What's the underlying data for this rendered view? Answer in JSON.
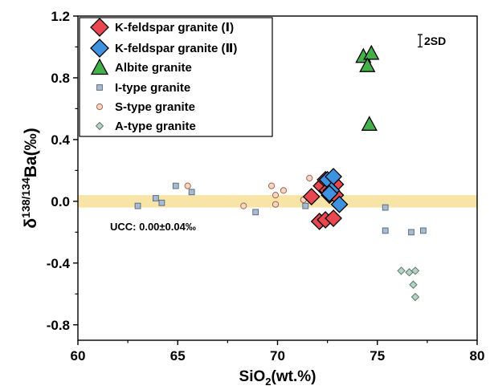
{
  "colors": {
    "kfs1": "#e8474f",
    "kfs2": "#3e92e0",
    "albite": "#43b049",
    "itype": "#a9bccf",
    "stype": "#f1d8c6",
    "atype": "#b7d2c6",
    "ucc_band": "#f7e4a6",
    "itype_stroke": "#5a6e86",
    "stype_stroke": "#a8634a",
    "atype_stroke": "#5c7a68"
  },
  "chart_data": {
    "type": "scatter",
    "title": "",
    "xlabel": "SiO",
    "xlabel_sub": "2",
    "xlabel_suffix": "(wt.%)",
    "ylabel_prefix": "δ",
    "ylabel_sup": "138/134",
    "ylabel_suffix": "Ba(‰)",
    "xlim": [
      60,
      80
    ],
    "ylim": [
      -0.9,
      1.2
    ],
    "xticks": [
      60,
      65,
      70,
      75,
      80
    ],
    "xtick_labels": [
      "60",
      "65",
      "70",
      "75",
      "80"
    ],
    "yticks": [
      -0.8,
      -0.4,
      0.0,
      0.4,
      0.8,
      1.2
    ],
    "ytick_labels": [
      "-0.8",
      "-0.4",
      "0.0",
      "0.4",
      "0.8",
      "1.2"
    ],
    "grid": false,
    "legend_position": "top-left",
    "ucc_band": {
      "y_min": -0.04,
      "y_max": 0.04,
      "label": "UCC: 0.00±0.04‰"
    },
    "error_bar": {
      "label": "2SD",
      "x": 77.0,
      "half_height": 0.04,
      "y": 1.04
    },
    "series": [
      {
        "name": "K-feldspar granite (Ⅰ)",
        "marker": "diamond",
        "color_key": "kfs1",
        "points": [
          [
            71.7,
            0.03
          ],
          [
            72.2,
            0.1
          ],
          [
            72.4,
            0.14
          ],
          [
            72.5,
            0.07
          ],
          [
            72.6,
            0.04
          ],
          [
            72.9,
            0.11
          ],
          [
            72.9,
            0.04
          ],
          [
            72.1,
            -0.13
          ],
          [
            72.4,
            -0.12
          ],
          [
            72.8,
            -0.11
          ]
        ]
      },
      {
        "name": "K-feldspar granite (Ⅱ)",
        "marker": "diamond",
        "color_key": "kfs2",
        "points": [
          [
            72.5,
            0.14
          ],
          [
            72.8,
            0.16
          ],
          [
            72.7,
            0.07
          ],
          [
            72.6,
            0.05
          ],
          [
            73.1,
            -0.02
          ]
        ]
      },
      {
        "name": "Albite granite",
        "marker": "triangle",
        "color_key": "albite",
        "points": [
          [
            74.3,
            0.94
          ],
          [
            74.7,
            0.96
          ],
          [
            74.5,
            0.88
          ],
          [
            74.6,
            0.5
          ]
        ]
      },
      {
        "name": "I-type granite",
        "marker": "square",
        "color_key": "itype",
        "points": [
          [
            63.0,
            -0.03
          ],
          [
            63.9,
            0.02
          ],
          [
            64.2,
            -0.01
          ],
          [
            64.9,
            0.1
          ],
          [
            65.7,
            0.06
          ],
          [
            68.9,
            -0.07
          ],
          [
            71.4,
            -0.03
          ],
          [
            75.4,
            -0.04
          ],
          [
            75.4,
            -0.19
          ],
          [
            76.7,
            -0.2
          ],
          [
            77.3,
            -0.19
          ]
        ]
      },
      {
        "name": "S-type granite",
        "marker": "circle",
        "color_key": "stype",
        "points": [
          [
            65.5,
            0.1
          ],
          [
            68.3,
            -0.03
          ],
          [
            69.7,
            0.1
          ],
          [
            69.9,
            0.04
          ],
          [
            69.9,
            -0.02
          ],
          [
            70.3,
            0.07
          ],
          [
            71.3,
            0.01
          ],
          [
            71.6,
            0.15
          ]
        ]
      },
      {
        "name": "A-type granite",
        "marker": "diamond-small",
        "color_key": "atype",
        "points": [
          [
            76.2,
            -0.45
          ],
          [
            76.6,
            -0.46
          ],
          [
            76.9,
            -0.45
          ],
          [
            76.8,
            -0.54
          ],
          [
            76.9,
            -0.62
          ]
        ]
      }
    ]
  }
}
